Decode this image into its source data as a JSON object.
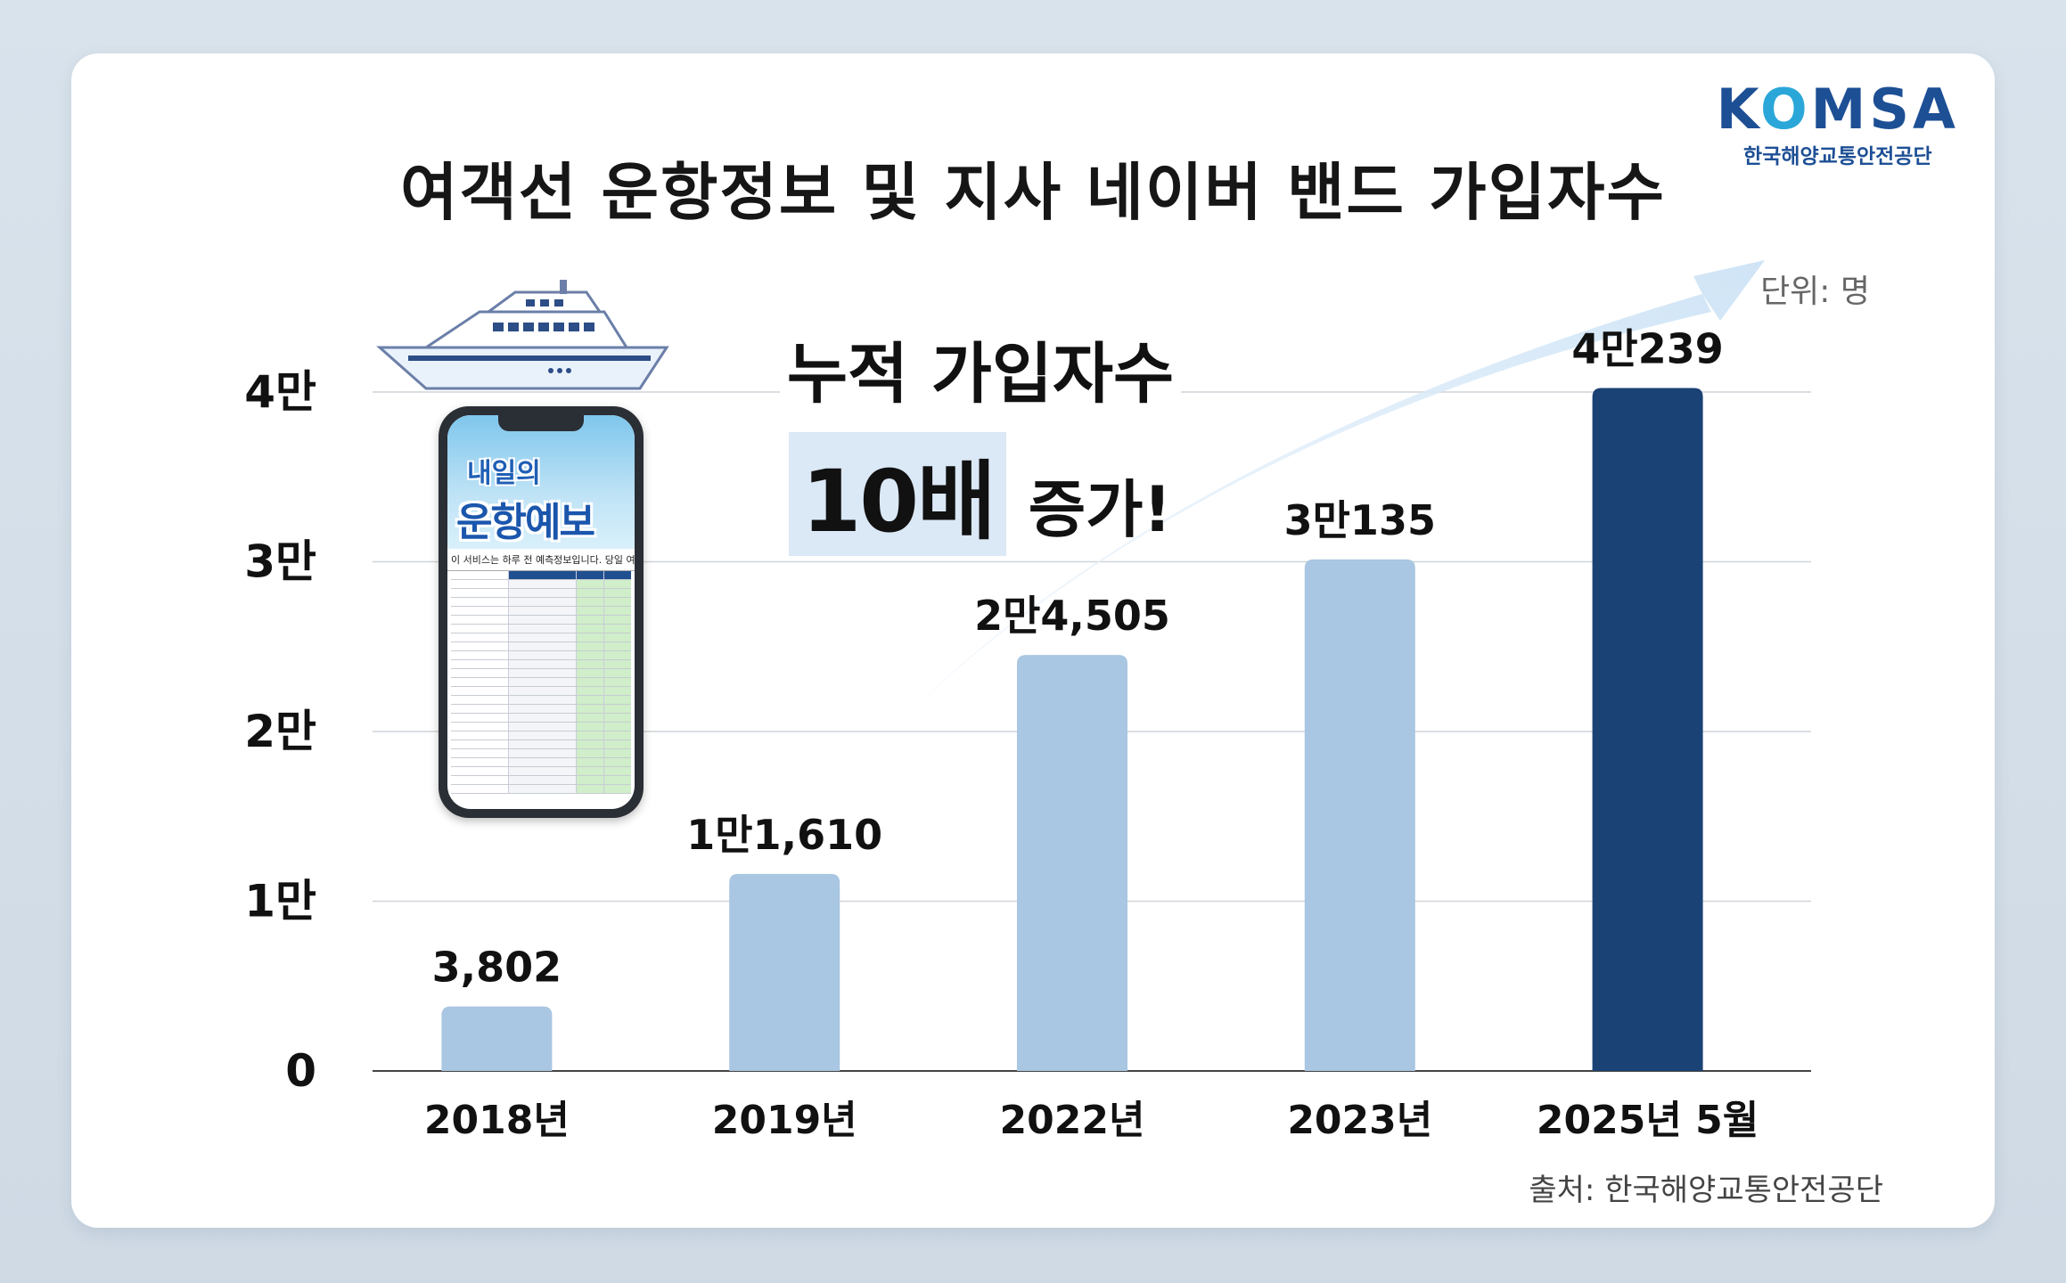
{
  "title": "여객선 운항정보 및 지사 네이버 밴드 가입자수",
  "logo": {
    "word": "KOMSA",
    "subtitle": "한국해양교통안전공단"
  },
  "unit_label": "단위: 명",
  "source_label": "출처: 한국해양교통안전공단",
  "callout": {
    "line1": "누적 가입자수",
    "highlight": "10배",
    "line2_rest": " 증가!"
  },
  "phone": {
    "title_line1": "내일의",
    "title_line2": "운항예보",
    "notice_text": "이 서비스는 하루 전 예측정보입니다. 당일 여객선 운항일정을 반드시"
  },
  "colors": {
    "bar_default": "#a9c6e2",
    "bar_highlight": "#1a4274",
    "arrow": "#d7e9f8"
  },
  "chart_data": {
    "type": "bar",
    "categories": [
      "2018년",
      "2019년",
      "2022년",
      "2023년",
      "2025년 5월"
    ],
    "values": [
      3802,
      11610,
      24505,
      30135,
      40239
    ],
    "value_labels": [
      "3,802",
      "1만1,610",
      "2만4,505",
      "3만135",
      "4만239"
    ],
    "highlight_index": 4,
    "ylim": [
      0,
      40000
    ],
    "yticks": [
      0,
      10000,
      20000,
      30000,
      40000
    ],
    "ytick_labels": [
      "0",
      "1만",
      "2만",
      "3만",
      "4만"
    ],
    "grid": true,
    "title": "여객선 운항정보 및 지사 네이버 밴드 가입자수"
  }
}
